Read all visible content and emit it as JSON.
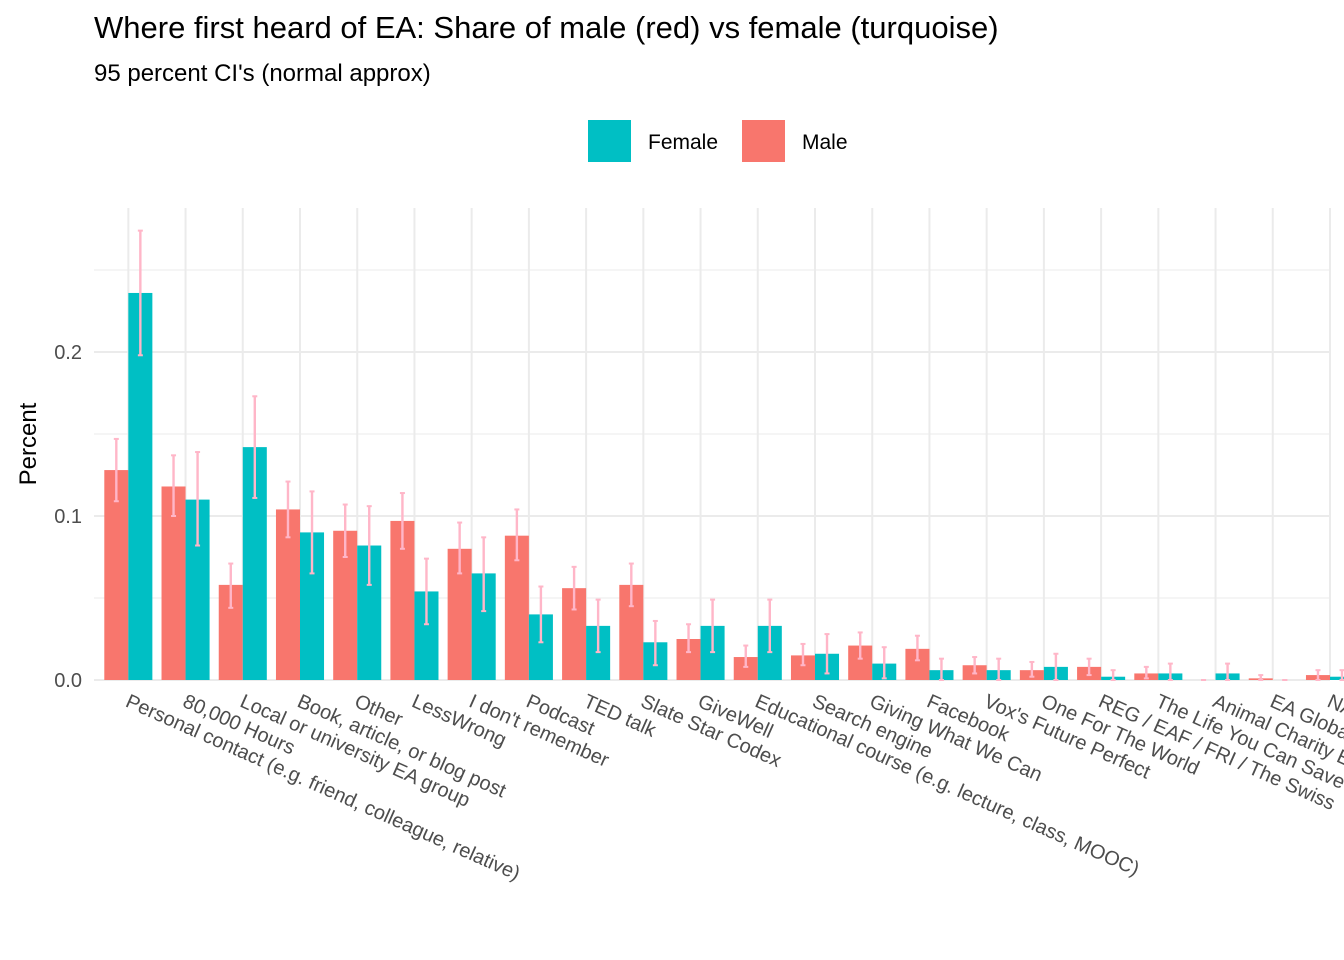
{
  "chart_data": {
    "type": "bar",
    "title": "Where first heard of EA: Share of male (red) vs female (turquoise)",
    "subtitle": "95 percent CI's (normal approx)",
    "ylabel": "Percent",
    "xlabel": "",
    "ylim": [
      0,
      0.27
    ],
    "yticks": [
      "0.0",
      "0.1",
      "0.2"
    ],
    "grid": true,
    "legend_position": "top",
    "categories": [
      "Personal contact (e.g. friend, colleague, relative)",
      "80,000 Hours",
      "Local or university EA group",
      "Book, article, or blog post",
      "Other",
      "LessWrong",
      "I don't remember",
      "Podcast",
      "TED talk",
      "Slate Star Codex",
      "GiveWell",
      "Educational course (e.g. lecture, class, MOOC)",
      "Search engine",
      "Giving What We Can",
      "Facebook",
      "Vox's Future Perfect",
      "One For The World",
      "REG / EAF / FRI / The Swiss",
      "The Life You Can Save",
      "Animal Charity Evaluators",
      "EA Global",
      "NA"
    ],
    "series": [
      {
        "name": "Male",
        "color": "#F8766D",
        "values": [
          0.128,
          0.118,
          0.058,
          0.104,
          0.091,
          0.097,
          0.08,
          0.088,
          0.056,
          0.058,
          0.025,
          0.014,
          0.015,
          0.021,
          0.019,
          0.009,
          0.006,
          0.008,
          0.004,
          0.0,
          0.001,
          0.003
        ],
        "ci_low": [
          0.109,
          0.1,
          0.044,
          0.087,
          0.075,
          0.08,
          0.065,
          0.073,
          0.043,
          0.045,
          0.017,
          0.008,
          0.009,
          0.013,
          0.012,
          0.004,
          0.002,
          0.003,
          0.001,
          0.0,
          0.0,
          0.0
        ],
        "ci_high": [
          0.147,
          0.137,
          0.071,
          0.121,
          0.107,
          0.114,
          0.096,
          0.104,
          0.069,
          0.071,
          0.034,
          0.021,
          0.022,
          0.029,
          0.027,
          0.014,
          0.011,
          0.013,
          0.008,
          0.0,
          0.003,
          0.006
        ]
      },
      {
        "name": "Female",
        "color": "#00BFC4",
        "values": [
          0.236,
          0.11,
          0.142,
          0.09,
          0.082,
          0.054,
          0.065,
          0.04,
          0.033,
          0.023,
          0.033,
          0.033,
          0.016,
          0.01,
          0.006,
          0.006,
          0.008,
          0.002,
          0.004,
          0.004,
          0.0,
          0.002
        ],
        "ci_low": [
          0.198,
          0.082,
          0.111,
          0.065,
          0.058,
          0.034,
          0.042,
          0.023,
          0.017,
          0.009,
          0.017,
          0.017,
          0.004,
          0.001,
          0.0,
          0.0,
          0.0,
          0.0,
          0.0,
          0.0,
          0.0,
          0.0
        ],
        "ci_high": [
          0.274,
          0.139,
          0.173,
          0.115,
          0.106,
          0.074,
          0.087,
          0.057,
          0.049,
          0.036,
          0.049,
          0.049,
          0.028,
          0.02,
          0.013,
          0.013,
          0.016,
          0.006,
          0.01,
          0.01,
          0.0,
          0.006
        ]
      }
    ],
    "error_bar_color": "#FFB6C8"
  }
}
